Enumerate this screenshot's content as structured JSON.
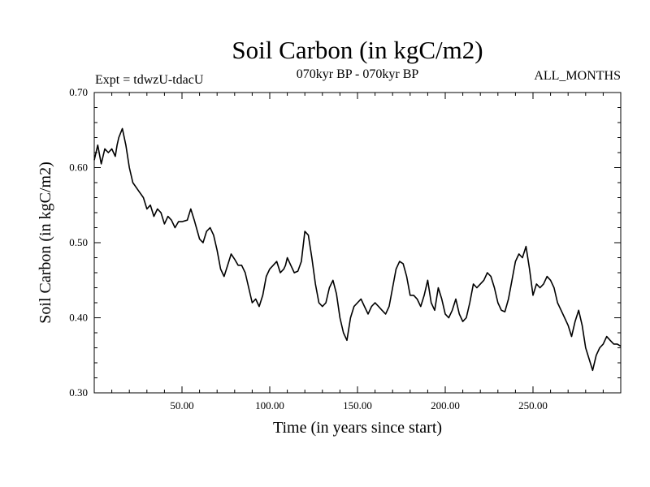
{
  "chart_data": {
    "type": "line",
    "title": "Soil Carbon (in kgC/m2)",
    "subtitle_left": "Expt = tdwzU-tdacU",
    "subtitle_center": "070kyr BP - 070kyr BP",
    "subtitle_right": "ALL_MONTHS",
    "xlabel": "Time (in years since start)",
    "ylabel": "Soil Carbon (in kgC/m2)",
    "xlim": [
      0,
      300
    ],
    "ylim": [
      0.3,
      0.7
    ],
    "x_ticks": [
      50,
      100,
      150,
      200,
      250
    ],
    "x_tick_labels": [
      "50.00",
      "100.00",
      "150.00",
      "200.00",
      "250.00"
    ],
    "y_ticks": [
      0.3,
      0.4,
      0.5,
      0.6,
      0.7
    ],
    "y_tick_labels": [
      "0.30",
      "0.40",
      "0.50",
      "0.60",
      "0.70"
    ],
    "grid": false,
    "series": [
      {
        "line_color": "#000000",
        "x": [
          0,
          2,
          4,
          6,
          8,
          10,
          12,
          13,
          14,
          16,
          18,
          20,
          22,
          25,
          28,
          30,
          32,
          34,
          36,
          38,
          40,
          42,
          44,
          46,
          48,
          50,
          53,
          55,
          57,
          60,
          62,
          64,
          66,
          68,
          70,
          72,
          74,
          76,
          78,
          80,
          82,
          84,
          86,
          88,
          90,
          92,
          94,
          96,
          98,
          100,
          102,
          104,
          106,
          108,
          109,
          110,
          112,
          114,
          116,
          118,
          120,
          122,
          124,
          126,
          128,
          130,
          132,
          134,
          136,
          138,
          140,
          142,
          144,
          146,
          148,
          150,
          152,
          154,
          156,
          158,
          160,
          162,
          164,
          166,
          168,
          170,
          172,
          174,
          176,
          178,
          180,
          182,
          184,
          186,
          188,
          190,
          192,
          194,
          196,
          198,
          200,
          202,
          204,
          206,
          208,
          210,
          212,
          214,
          216,
          218,
          220,
          222,
          224,
          226,
          228,
          230,
          232,
          234,
          236,
          238,
          240,
          242,
          244,
          246,
          248,
          250,
          252,
          254,
          256,
          258,
          260,
          262,
          264,
          266,
          268,
          270,
          272,
          274,
          276,
          278,
          280,
          282,
          284,
          286,
          288,
          290,
          292,
          294,
          296,
          298,
          300
        ],
        "y": [
          0.61,
          0.63,
          0.605,
          0.625,
          0.62,
          0.625,
          0.615,
          0.63,
          0.64,
          0.652,
          0.63,
          0.6,
          0.58,
          0.57,
          0.56,
          0.545,
          0.55,
          0.535,
          0.545,
          0.54,
          0.525,
          0.535,
          0.53,
          0.52,
          0.528,
          0.528,
          0.53,
          0.545,
          0.53,
          0.505,
          0.5,
          0.515,
          0.52,
          0.51,
          0.49,
          0.465,
          0.455,
          0.47,
          0.485,
          0.478,
          0.47,
          0.47,
          0.46,
          0.44,
          0.42,
          0.425,
          0.415,
          0.43,
          0.455,
          0.465,
          0.47,
          0.475,
          0.46,
          0.465,
          0.47,
          0.48,
          0.47,
          0.46,
          0.462,
          0.475,
          0.515,
          0.51,
          0.48,
          0.445,
          0.42,
          0.415,
          0.42,
          0.44,
          0.45,
          0.432,
          0.4,
          0.38,
          0.37,
          0.4,
          0.415,
          0.42,
          0.425,
          0.415,
          0.405,
          0.415,
          0.42,
          0.415,
          0.41,
          0.405,
          0.415,
          0.44,
          0.465,
          0.475,
          0.472,
          0.455,
          0.43,
          0.43,
          0.425,
          0.415,
          0.43,
          0.45,
          0.42,
          0.41,
          0.44,
          0.425,
          0.405,
          0.4,
          0.41,
          0.425,
          0.405,
          0.395,
          0.4,
          0.42,
          0.445,
          0.44,
          0.445,
          0.45,
          0.46,
          0.455,
          0.44,
          0.42,
          0.41,
          0.408,
          0.425,
          0.45,
          0.475,
          0.485,
          0.48,
          0.495,
          0.465,
          0.43,
          0.445,
          0.44,
          0.445,
          0.455,
          0.45,
          0.44,
          0.42,
          0.41,
          0.4,
          0.39,
          0.375,
          0.395,
          0.41,
          0.39,
          0.36,
          0.345,
          0.33,
          0.35,
          0.36,
          0.365,
          0.375,
          0.37,
          0.365,
          0.365,
          0.362
        ]
      }
    ]
  }
}
